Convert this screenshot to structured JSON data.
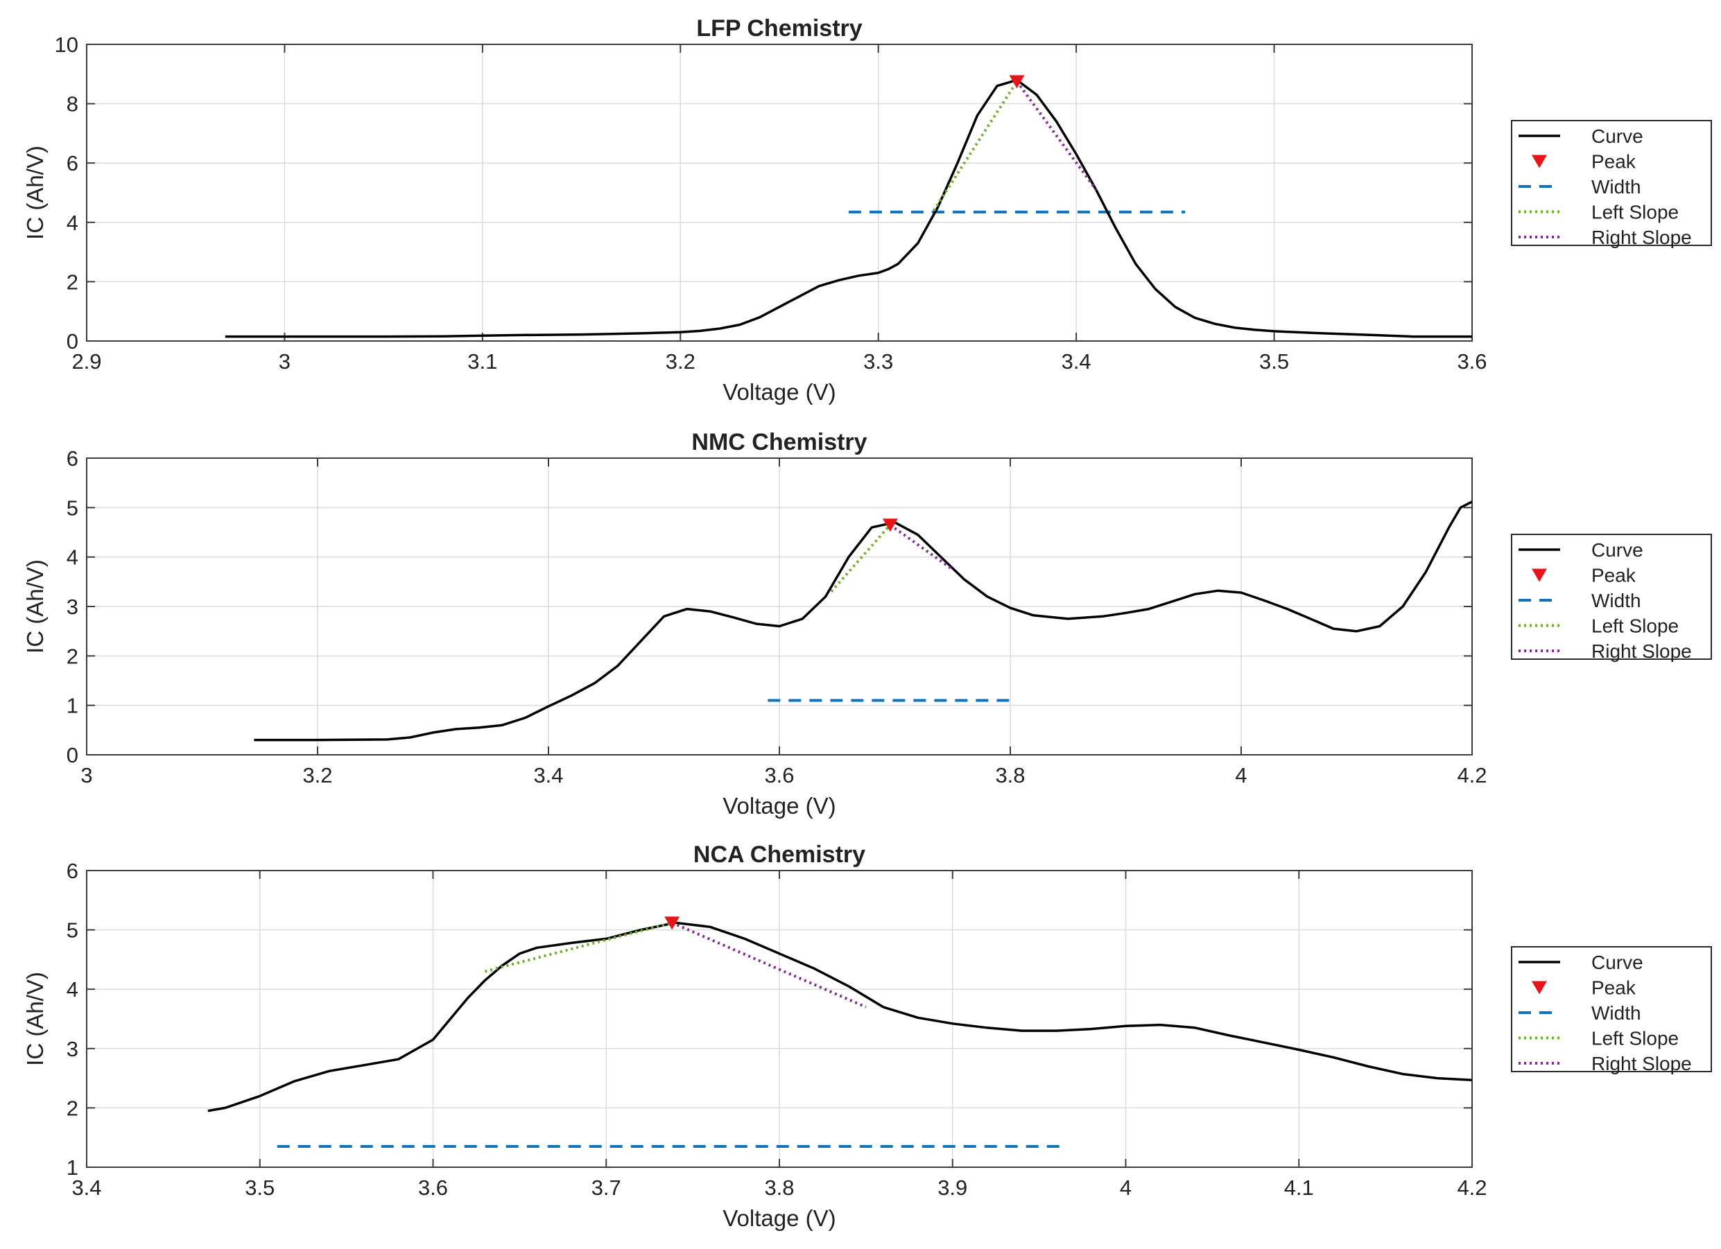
{
  "chart_data": [
    {
      "type": "line",
      "title": "LFP Chemistry",
      "xlabel": "Voltage (V)",
      "ylabel": "IC (Ah/V)",
      "xlim": [
        2.9,
        3.6
      ],
      "ylim": [
        0,
        10
      ],
      "xticks": [
        2.9,
        3.0,
        3.1,
        3.2,
        3.3,
        3.4,
        3.5,
        3.6
      ],
      "xtick_labels": [
        "2.9",
        "3",
        "3.1",
        "3.2",
        "3.3",
        "3.4",
        "3.5",
        "3.6"
      ],
      "yticks": [
        0,
        2,
        4,
        6,
        8,
        10
      ],
      "ytick_labels": [
        "0",
        "2",
        "4",
        "6",
        "8",
        "10"
      ],
      "grid": true,
      "legend": [
        "Curve",
        "Peak",
        "Width",
        "Left Slope",
        "Right Slope"
      ],
      "curve": {
        "x": [
          2.97,
          3.0,
          3.05,
          3.08,
          3.1,
          3.12,
          3.15,
          3.18,
          3.2,
          3.21,
          3.22,
          3.23,
          3.24,
          3.25,
          3.26,
          3.27,
          3.28,
          3.29,
          3.3,
          3.305,
          3.31,
          3.32,
          3.33,
          3.34,
          3.35,
          3.36,
          3.37,
          3.38,
          3.39,
          3.4,
          3.41,
          3.42,
          3.43,
          3.44,
          3.45,
          3.46,
          3.47,
          3.48,
          3.49,
          3.5,
          3.52,
          3.55,
          3.57,
          3.6
        ],
        "y": [
          0.15,
          0.15,
          0.15,
          0.16,
          0.18,
          0.2,
          0.22,
          0.26,
          0.3,
          0.34,
          0.42,
          0.55,
          0.8,
          1.15,
          1.5,
          1.85,
          2.05,
          2.2,
          2.3,
          2.42,
          2.6,
          3.3,
          4.5,
          6.0,
          7.6,
          8.6,
          8.8,
          8.3,
          7.4,
          6.3,
          5.1,
          3.8,
          2.6,
          1.75,
          1.15,
          0.78,
          0.58,
          0.45,
          0.38,
          0.33,
          0.27,
          0.2,
          0.15,
          0.15
        ]
      },
      "peak": {
        "x": 3.37,
        "y": 8.75
      },
      "width": {
        "x": [
          3.285,
          3.455
        ],
        "y": 4.35
      },
      "left_slope": {
        "x": [
          3.328,
          3.37
        ],
        "y": [
          4.4,
          8.75
        ]
      },
      "right_slope": {
        "x": [
          3.37,
          3.41
        ],
        "y": [
          8.75,
          5.1
        ]
      }
    },
    {
      "type": "line",
      "title": "NMC Chemistry",
      "xlabel": "Voltage (V)",
      "ylabel": "IC (Ah/V)",
      "xlim": [
        3.0,
        4.2
      ],
      "ylim": [
        0,
        6
      ],
      "xticks": [
        3.0,
        3.2,
        3.4,
        3.6,
        3.8,
        4.0,
        4.2
      ],
      "xtick_labels": [
        "3",
        "3.2",
        "3.4",
        "3.6",
        "3.8",
        "4",
        "4.2"
      ],
      "yticks": [
        0,
        1,
        2,
        3,
        4,
        5,
        6
      ],
      "ytick_labels": [
        "0",
        "1",
        "2",
        "3",
        "4",
        "5",
        "6"
      ],
      "grid": true,
      "legend": [
        "Curve",
        "Peak",
        "Width",
        "Left Slope",
        "Right Slope"
      ],
      "curve": {
        "x": [
          3.145,
          3.2,
          3.26,
          3.28,
          3.3,
          3.32,
          3.34,
          3.36,
          3.38,
          3.4,
          3.42,
          3.44,
          3.46,
          3.48,
          3.5,
          3.52,
          3.54,
          3.56,
          3.58,
          3.6,
          3.62,
          3.64,
          3.66,
          3.68,
          3.7,
          3.72,
          3.74,
          3.76,
          3.78,
          3.8,
          3.82,
          3.85,
          3.88,
          3.9,
          3.92,
          3.94,
          3.96,
          3.98,
          4.0,
          4.02,
          4.04,
          4.06,
          4.08,
          4.1,
          4.12,
          4.14,
          4.16,
          4.18,
          4.19,
          4.2
        ],
        "y": [
          0.3,
          0.3,
          0.31,
          0.35,
          0.45,
          0.52,
          0.55,
          0.6,
          0.75,
          0.98,
          1.2,
          1.45,
          1.8,
          2.3,
          2.8,
          2.95,
          2.9,
          2.78,
          2.65,
          2.6,
          2.75,
          3.2,
          4.0,
          4.6,
          4.7,
          4.45,
          4.0,
          3.55,
          3.2,
          2.97,
          2.82,
          2.75,
          2.8,
          2.87,
          2.95,
          3.1,
          3.25,
          3.32,
          3.28,
          3.12,
          2.95,
          2.75,
          2.55,
          2.5,
          2.6,
          3.0,
          3.7,
          4.6,
          5.0,
          5.12
        ]
      },
      "peak": {
        "x": 3.696,
        "y": 4.65
      },
      "width": {
        "x": [
          3.59,
          3.805
        ],
        "y": 1.1
      },
      "left_slope": {
        "x": [
          3.645,
          3.696
        ],
        "y": [
          3.3,
          4.65
        ]
      },
      "right_slope": {
        "x": [
          3.696,
          3.75
        ],
        "y": [
          4.65,
          3.75
        ]
      }
    },
    {
      "type": "line",
      "title": "NCA Chemistry",
      "xlabel": "Voltage (V)",
      "ylabel": "IC (Ah/V)",
      "xlim": [
        3.4,
        4.2
      ],
      "ylim": [
        1,
        6
      ],
      "xticks": [
        3.4,
        3.5,
        3.6,
        3.7,
        3.8,
        3.9,
        4.0,
        4.1,
        4.2
      ],
      "xtick_labels": [
        "3.4",
        "3.5",
        "3.6",
        "3.7",
        "3.8",
        "3.9",
        "4",
        "4.1",
        "4.2"
      ],
      "yticks": [
        1,
        2,
        3,
        4,
        5,
        6
      ],
      "ytick_labels": [
        "1",
        "2",
        "3",
        "4",
        "5",
        "6"
      ],
      "grid": true,
      "legend": [
        "Curve",
        "Peak",
        "Width",
        "Left Slope",
        "Right Slope"
      ],
      "curve": {
        "x": [
          3.47,
          3.48,
          3.5,
          3.52,
          3.54,
          3.56,
          3.58,
          3.6,
          3.61,
          3.62,
          3.63,
          3.64,
          3.65,
          3.66,
          3.68,
          3.7,
          3.72,
          3.74,
          3.76,
          3.78,
          3.8,
          3.82,
          3.84,
          3.86,
          3.88,
          3.9,
          3.92,
          3.94,
          3.96,
          3.98,
          4.0,
          4.02,
          4.04,
          4.06,
          4.08,
          4.1,
          4.12,
          4.14,
          4.16,
          4.18,
          4.2
        ],
        "y": [
          1.95,
          2.0,
          2.2,
          2.45,
          2.62,
          2.72,
          2.82,
          3.15,
          3.5,
          3.85,
          4.15,
          4.4,
          4.6,
          4.7,
          4.78,
          4.85,
          5.0,
          5.12,
          5.05,
          4.85,
          4.6,
          4.35,
          4.05,
          3.7,
          3.52,
          3.42,
          3.35,
          3.3,
          3.3,
          3.33,
          3.38,
          3.4,
          3.35,
          3.22,
          3.1,
          2.98,
          2.85,
          2.7,
          2.57,
          2.5,
          2.47
        ]
      },
      "peak": {
        "x": 3.738,
        "y": 5.12
      },
      "width": {
        "x": [
          3.51,
          3.965
        ],
        "y": 1.35
      },
      "left_slope": {
        "x": [
          3.63,
          3.738
        ],
        "y": [
          4.3,
          5.12
        ]
      },
      "right_slope": {
        "x": [
          3.738,
          3.85
        ],
        "y": [
          5.12,
          3.7
        ]
      }
    }
  ],
  "colors": {
    "curve": "#000000",
    "peak": "#e8141b",
    "width": "#0f74bd",
    "left_slope": "#6fae2c",
    "right_slope": "#7e2f8e",
    "grid": "#dcdcdc",
    "axis": "#3c3c3c"
  }
}
